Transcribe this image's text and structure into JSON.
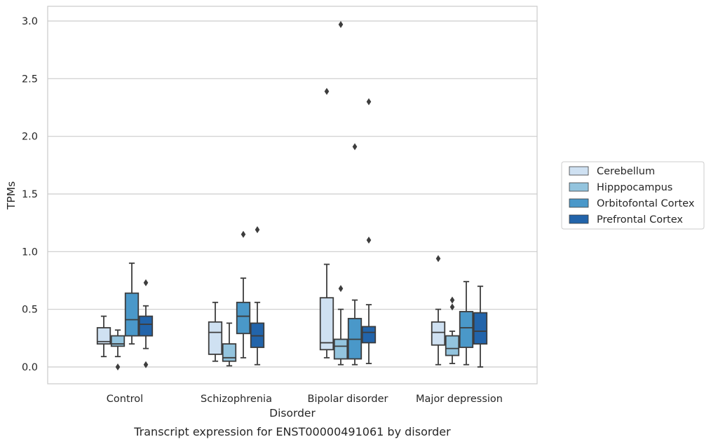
{
  "caption": "Transcript expression for ENST00000491061 by disorder",
  "chart_data": {
    "type": "box",
    "xlabel": "Disorder",
    "ylabel": "TPMs",
    "ylim": [
      -0.15,
      3.12
    ],
    "yticks": [
      "0.0",
      "0.5",
      "1.0",
      "1.5",
      "2.0",
      "2.5",
      "3.0"
    ],
    "grid": "horizontal",
    "legend_position": "right",
    "categories": [
      "Control",
      "Schizophrenia",
      "Bipolar disorder",
      "Major depression"
    ],
    "series": [
      {
        "name": "Cerebellum",
        "color": "#cfe1f2",
        "boxes": [
          {
            "whislo": 0.09,
            "q1": 0.2,
            "med": 0.22,
            "q3": 0.34,
            "whishi": 0.44,
            "fliers": []
          },
          {
            "whislo": 0.05,
            "q1": 0.11,
            "med": 0.3,
            "q3": 0.39,
            "whishi": 0.56,
            "fliers": []
          },
          {
            "whislo": 0.08,
            "q1": 0.15,
            "med": 0.21,
            "q3": 0.6,
            "whishi": 0.89,
            "fliers": [
              2.39
            ]
          },
          {
            "whislo": 0.02,
            "q1": 0.19,
            "med": 0.3,
            "q3": 0.39,
            "whishi": 0.5,
            "fliers": [
              0.94
            ]
          }
        ]
      },
      {
        "name": "Hipppocampus",
        "color": "#93c4de",
        "boxes": [
          {
            "whislo": 0.09,
            "q1": 0.18,
            "med": 0.2,
            "q3": 0.27,
            "whishi": 0.32,
            "fliers": [
              0.0
            ]
          },
          {
            "whislo": 0.01,
            "q1": 0.05,
            "med": 0.08,
            "q3": 0.2,
            "whishi": 0.38,
            "fliers": []
          },
          {
            "whislo": 0.02,
            "q1": 0.07,
            "med": 0.18,
            "q3": 0.24,
            "whishi": 0.5,
            "fliers": [
              0.68,
              2.97
            ]
          },
          {
            "whislo": 0.03,
            "q1": 0.1,
            "med": 0.16,
            "q3": 0.27,
            "whishi": 0.31,
            "fliers": [
              0.52,
              0.58
            ]
          }
        ]
      },
      {
        "name": "Orbitofontal Cortex",
        "color": "#4a98c9",
        "boxes": [
          {
            "whislo": 0.2,
            "q1": 0.27,
            "med": 0.41,
            "q3": 0.64,
            "whishi": 0.9,
            "fliers": []
          },
          {
            "whislo": 0.08,
            "q1": 0.29,
            "med": 0.44,
            "q3": 0.56,
            "whishi": 0.77,
            "fliers": [
              1.15
            ]
          },
          {
            "whislo": 0.02,
            "q1": 0.07,
            "med": 0.24,
            "q3": 0.42,
            "whishi": 0.58,
            "fliers": [
              1.91
            ]
          },
          {
            "whislo": 0.02,
            "q1": 0.17,
            "med": 0.34,
            "q3": 0.48,
            "whishi": 0.74,
            "fliers": []
          }
        ]
      },
      {
        "name": "Prefrontal Cortex",
        "color": "#2264aa",
        "boxes": [
          {
            "whislo": 0.16,
            "q1": 0.27,
            "med": 0.37,
            "q3": 0.44,
            "whishi": 0.53,
            "fliers": [
              0.02,
              0.73
            ]
          },
          {
            "whislo": 0.02,
            "q1": 0.17,
            "med": 0.27,
            "q3": 0.38,
            "whishi": 0.56,
            "fliers": [
              1.19
            ]
          },
          {
            "whislo": 0.03,
            "q1": 0.21,
            "med": 0.3,
            "q3": 0.35,
            "whishi": 0.54,
            "fliers": [
              1.1,
              2.3
            ]
          },
          {
            "whislo": 0.0,
            "q1": 0.2,
            "med": 0.31,
            "q3": 0.47,
            "whishi": 0.7,
            "fliers": []
          }
        ]
      }
    ]
  }
}
